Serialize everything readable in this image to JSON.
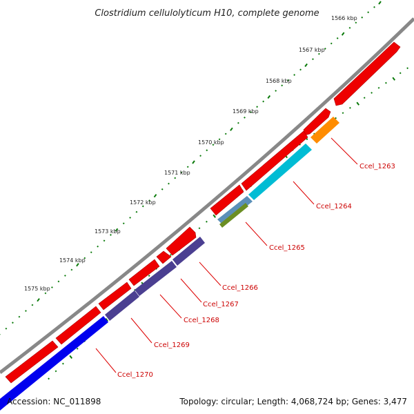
{
  "title": "Clostridium cellulolyticum H10, complete genome",
  "footer": {
    "accession": "Accession: NC_011898",
    "summary": "Topology: circular; Length: 4,068,724 bp; Genes: 3,477"
  },
  "ruler_labels": [
    "1566 kbp",
    "1567 kbp",
    "1568 kbp",
    "1569 kbp",
    "1570 kbp",
    "1571 kbp",
    "1572 kbp",
    "1573 kbp",
    "1574 kbp",
    "1575 kbp"
  ],
  "gene_labels": [
    "Ccel_1263",
    "Ccel_1264",
    "Ccel_1265",
    "Ccel_1266",
    "Ccel_1267",
    "Ccel_1268",
    "Ccel_1269",
    "Ccel_1270"
  ],
  "colors": {
    "backbone": "#888888",
    "cds": "#ee0000",
    "tick": "#0a7a0a",
    "label": "#cc0000",
    "leader": "#dd0000",
    "ccel_1263": "#ff8c00",
    "ccel_1264": "#00bcd4",
    "ccel_1265": "#6b8e23",
    "ccel_1266_1269": "#4b3f91",
    "ccel_1270": "#0000ee"
  }
}
